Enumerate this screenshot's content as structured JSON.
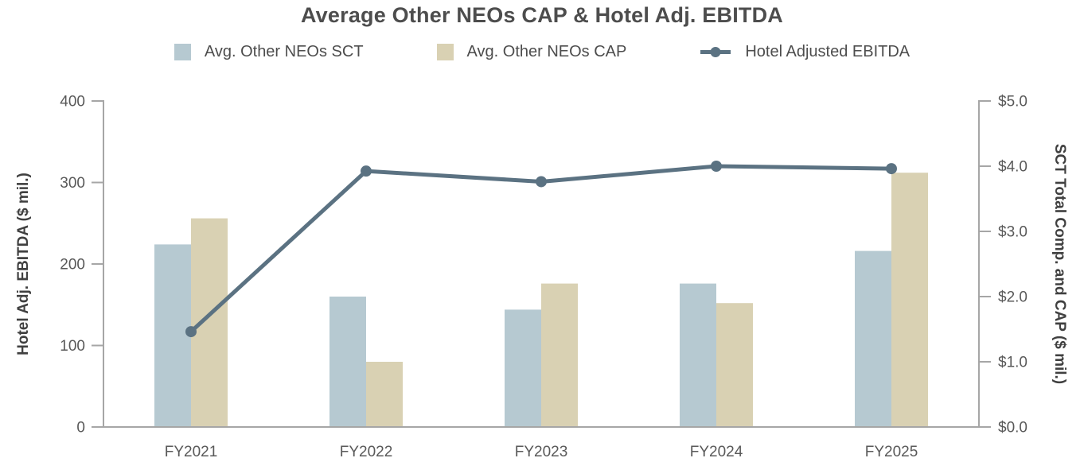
{
  "title": "Average Other NEOs CAP & Hotel Adj. EBITDA",
  "legend": [
    {
      "label": "Avg. Other NEOs SCT",
      "marker": "square-swatch",
      "color": "#b6c9d1"
    },
    {
      "label": "Avg. Other NEOs CAP",
      "marker": "square-swatch",
      "color": "#d9d1b3"
    },
    {
      "label": "Hotel Adjusted EBITDA",
      "marker": "line-with-dot",
      "color": "#5b7282"
    }
  ],
  "colors": {
    "sct_bar": "#b6c9d1",
    "cap_bar": "#d9d1b3",
    "ebitda_line": "#5b7282",
    "axis_line": "#a6a6a6",
    "tick_text": "#595959",
    "title_text": "#4d4d4d",
    "axis_title_text": "#404040"
  },
  "chart_data": {
    "type": "bar",
    "subtype": "grouped-bars-with-line-overlay",
    "title": "Average Other NEOs CAP & Hotel Adj. EBITDA",
    "categories": [
      "FY2021",
      "FY2022",
      "FY2023",
      "FY2024",
      "FY2025"
    ],
    "series": [
      {
        "name": "Avg. Other NEOs SCT",
        "type": "bar",
        "axis": "right",
        "color": "#b6c9d1",
        "values": [
          2.8,
          2.0,
          1.8,
          2.2,
          2.7
        ]
      },
      {
        "name": "Avg. Other NEOs CAP",
        "type": "bar",
        "axis": "right",
        "color": "#d9d1b3",
        "values": [
          3.2,
          1.0,
          2.2,
          1.9,
          3.9
        ]
      },
      {
        "name": "Hotel Adjusted EBITDA",
        "type": "line",
        "axis": "left",
        "color": "#5b7282",
        "values": [
          117,
          314,
          301,
          320,
          317
        ]
      }
    ],
    "left_axis": {
      "label": "Hotel Adj. EBITDA ($ mil.)",
      "min": 0,
      "max": 400,
      "ticks": [
        "0",
        "100",
        "200",
        "300",
        "400"
      ]
    },
    "right_axis": {
      "label": "SCT Total Comp. and CAP ($ mil.)",
      "min": 0,
      "max": 5,
      "ticks": [
        "$0.0",
        "$1.0",
        "$2.0",
        "$3.0",
        "$4.0",
        "$5.0"
      ]
    },
    "grid": false,
    "legend_position": "top"
  }
}
